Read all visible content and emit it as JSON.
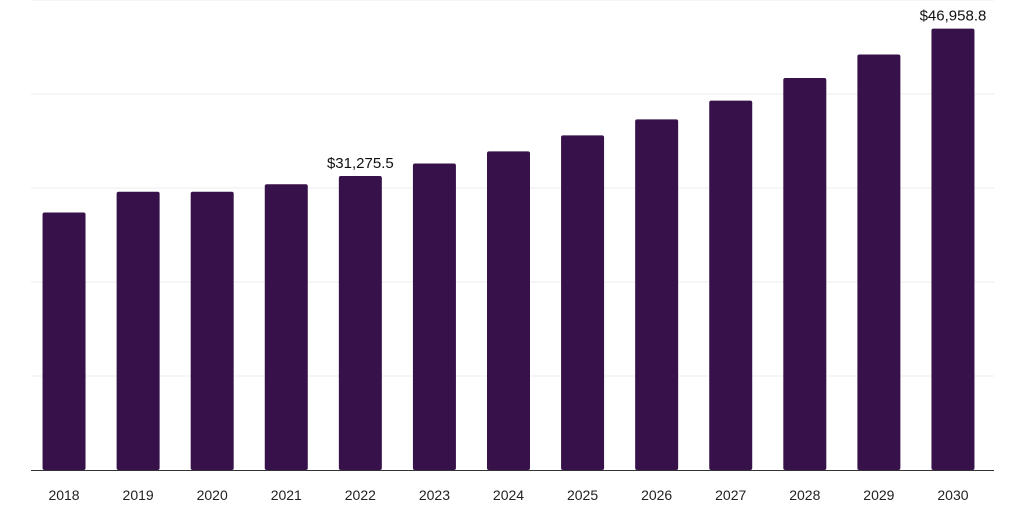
{
  "chart_data": {
    "type": "bar",
    "title": "",
    "xlabel": "",
    "ylabel": "",
    "categories": [
      "2018",
      "2019",
      "2020",
      "2021",
      "2022",
      "2023",
      "2024",
      "2025",
      "2026",
      "2027",
      "2028",
      "2029",
      "2030"
    ],
    "values": [
      27400,
      29600,
      29600,
      30400,
      31275.5,
      32600,
      33900,
      35600,
      37300,
      39300,
      41700,
      44200,
      46958.8
    ],
    "data_labels": [
      {
        "category": "2022",
        "text": "$31,275.5"
      },
      {
        "category": "2030",
        "text": "$46,958.8"
      }
    ],
    "ylim": [
      0,
      50000
    ],
    "grid": true,
    "legend": "none",
    "bar_color": "#371149",
    "grid_color": "#eeeeee",
    "axis_color": "#333333"
  }
}
